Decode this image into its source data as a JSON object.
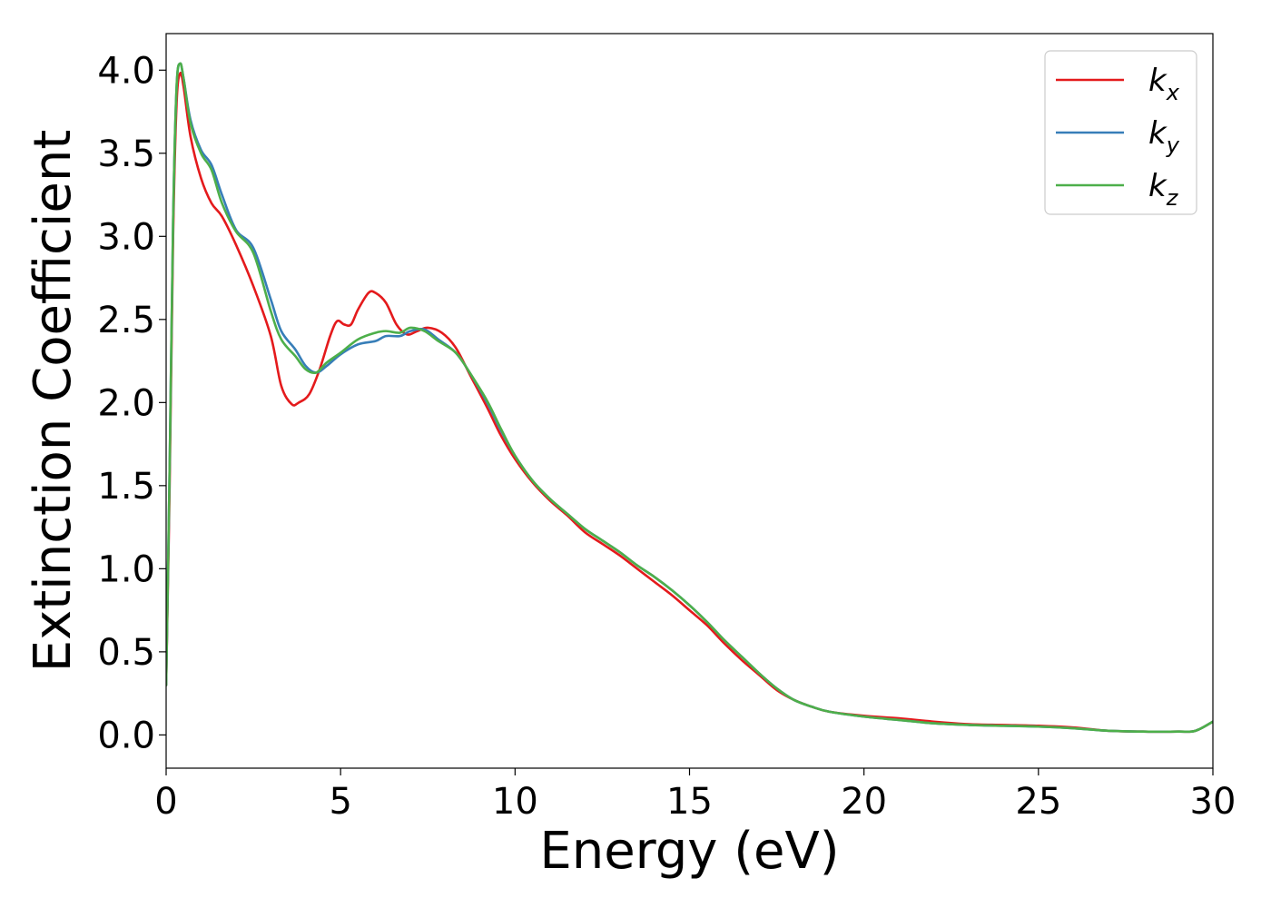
{
  "chart_data": {
    "type": "line",
    "title": "",
    "xlabel": "Energy (eV)",
    "ylabel": "Extinction Coefficient",
    "xlim": [
      0,
      30
    ],
    "ylim": [
      -0.2,
      4.22
    ],
    "xticks": [
      0,
      5,
      10,
      15,
      20,
      25,
      30
    ],
    "xtick_labels": [
      "0",
      "5",
      "10",
      "15",
      "20",
      "25",
      "30"
    ],
    "yticks": [
      0.0,
      0.5,
      1.0,
      1.5,
      2.0,
      2.5,
      3.0,
      3.5,
      4.0
    ],
    "ytick_labels": [
      "0.0",
      "0.5",
      "1.0",
      "1.5",
      "2.0",
      "2.5",
      "3.0",
      "3.5",
      "4.0"
    ],
    "grid": false,
    "legend_position": "top-right",
    "series": [
      {
        "name": "k",
        "subscript": "x",
        "color": "#e41a1c",
        "points": [
          [
            0,
            0.3
          ],
          [
            0.1,
            1.5
          ],
          [
            0.2,
            3.0
          ],
          [
            0.3,
            3.8
          ],
          [
            0.4,
            3.98
          ],
          [
            0.5,
            3.9
          ],
          [
            0.7,
            3.6
          ],
          [
            1.0,
            3.35
          ],
          [
            1.3,
            3.2
          ],
          [
            1.6,
            3.12
          ],
          [
            2.0,
            2.95
          ],
          [
            2.5,
            2.7
          ],
          [
            3.0,
            2.4
          ],
          [
            3.3,
            2.1
          ],
          [
            3.6,
            1.99
          ],
          [
            3.8,
            2.0
          ],
          [
            4.1,
            2.05
          ],
          [
            4.4,
            2.2
          ],
          [
            4.7,
            2.4
          ],
          [
            4.9,
            2.49
          ],
          [
            5.1,
            2.47
          ],
          [
            5.3,
            2.47
          ],
          [
            5.5,
            2.56
          ],
          [
            5.8,
            2.66
          ],
          [
            6.0,
            2.66
          ],
          [
            6.3,
            2.6
          ],
          [
            6.6,
            2.47
          ],
          [
            6.9,
            2.41
          ],
          [
            7.2,
            2.43
          ],
          [
            7.5,
            2.45
          ],
          [
            7.9,
            2.42
          ],
          [
            8.3,
            2.33
          ],
          [
            8.7,
            2.17
          ],
          [
            9.2,
            1.97
          ],
          [
            9.6,
            1.8
          ],
          [
            10.0,
            1.66
          ],
          [
            10.5,
            1.52
          ],
          [
            11.0,
            1.41
          ],
          [
            11.5,
            1.32
          ],
          [
            12.0,
            1.22
          ],
          [
            12.5,
            1.15
          ],
          [
            13.0,
            1.08
          ],
          [
            13.5,
            1.0
          ],
          [
            14.0,
            0.92
          ],
          [
            14.5,
            0.84
          ],
          [
            15.0,
            0.75
          ],
          [
            15.5,
            0.66
          ],
          [
            16.0,
            0.55
          ],
          [
            16.5,
            0.45
          ],
          [
            17.0,
            0.36
          ],
          [
            17.5,
            0.27
          ],
          [
            18.0,
            0.21
          ],
          [
            18.5,
            0.17
          ],
          [
            19.0,
            0.14
          ],
          [
            20.0,
            0.115
          ],
          [
            21.0,
            0.1
          ],
          [
            22.0,
            0.08
          ],
          [
            23.0,
            0.065
          ],
          [
            24.0,
            0.06
          ],
          [
            25.0,
            0.055
          ],
          [
            26.0,
            0.045
          ],
          [
            27.0,
            0.025
          ],
          [
            28.0,
            0.02
          ],
          [
            29.0,
            0.02
          ],
          [
            29.5,
            0.025
          ],
          [
            30.0,
            0.08
          ]
        ]
      },
      {
        "name": "k",
        "subscript": "y",
        "color": "#377eb8",
        "points": [
          [
            0,
            0.3
          ],
          [
            0.1,
            1.6
          ],
          [
            0.2,
            3.1
          ],
          [
            0.3,
            3.9
          ],
          [
            0.4,
            4.04
          ],
          [
            0.5,
            3.95
          ],
          [
            0.7,
            3.7
          ],
          [
            1.0,
            3.52
          ],
          [
            1.3,
            3.43
          ],
          [
            1.6,
            3.25
          ],
          [
            2.0,
            3.04
          ],
          [
            2.5,
            2.93
          ],
          [
            3.0,
            2.62
          ],
          [
            3.3,
            2.43
          ],
          [
            3.7,
            2.32
          ],
          [
            4.0,
            2.22
          ],
          [
            4.3,
            2.18
          ],
          [
            4.6,
            2.22
          ],
          [
            5.0,
            2.29
          ],
          [
            5.5,
            2.35
          ],
          [
            6.0,
            2.37
          ],
          [
            6.3,
            2.4
          ],
          [
            6.7,
            2.4
          ],
          [
            7.0,
            2.43
          ],
          [
            7.4,
            2.44
          ],
          [
            7.8,
            2.38
          ],
          [
            8.3,
            2.3
          ],
          [
            8.7,
            2.18
          ],
          [
            9.2,
            2.0
          ],
          [
            9.6,
            1.83
          ],
          [
            10.0,
            1.68
          ],
          [
            10.5,
            1.53
          ],
          [
            11.0,
            1.42
          ],
          [
            11.5,
            1.33
          ],
          [
            12.0,
            1.24
          ],
          [
            12.5,
            1.17
          ],
          [
            13.0,
            1.1
          ],
          [
            13.5,
            1.02
          ],
          [
            14.0,
            0.95
          ],
          [
            14.5,
            0.87
          ],
          [
            15.0,
            0.78
          ],
          [
            15.5,
            0.68
          ],
          [
            16.0,
            0.57
          ],
          [
            16.5,
            0.47
          ],
          [
            17.0,
            0.37
          ],
          [
            17.5,
            0.28
          ],
          [
            18.0,
            0.21
          ],
          [
            18.5,
            0.17
          ],
          [
            19.0,
            0.14
          ],
          [
            20.0,
            0.11
          ],
          [
            21.0,
            0.09
          ],
          [
            22.0,
            0.07
          ],
          [
            23.0,
            0.06
          ],
          [
            24.0,
            0.055
          ],
          [
            25.0,
            0.05
          ],
          [
            26.0,
            0.04
          ],
          [
            27.0,
            0.025
          ],
          [
            28.0,
            0.02
          ],
          [
            29.0,
            0.02
          ],
          [
            29.5,
            0.025
          ],
          [
            30.0,
            0.08
          ]
        ]
      },
      {
        "name": "k",
        "subscript": "z",
        "color": "#4daf4a",
        "points": [
          [
            0,
            0.3
          ],
          [
            0.1,
            1.6
          ],
          [
            0.2,
            3.1
          ],
          [
            0.3,
            3.9
          ],
          [
            0.4,
            4.04
          ],
          [
            0.5,
            3.95
          ],
          [
            0.7,
            3.68
          ],
          [
            1.0,
            3.5
          ],
          [
            1.3,
            3.4
          ],
          [
            1.6,
            3.2
          ],
          [
            2.0,
            3.03
          ],
          [
            2.5,
            2.9
          ],
          [
            3.0,
            2.55
          ],
          [
            3.3,
            2.38
          ],
          [
            3.7,
            2.28
          ],
          [
            4.0,
            2.2
          ],
          [
            4.3,
            2.18
          ],
          [
            4.6,
            2.24
          ],
          [
            5.0,
            2.3
          ],
          [
            5.5,
            2.38
          ],
          [
            6.0,
            2.42
          ],
          [
            6.3,
            2.43
          ],
          [
            6.7,
            2.42
          ],
          [
            7.0,
            2.45
          ],
          [
            7.4,
            2.43
          ],
          [
            7.8,
            2.37
          ],
          [
            8.3,
            2.3
          ],
          [
            8.7,
            2.18
          ],
          [
            9.2,
            2.01
          ],
          [
            9.6,
            1.84
          ],
          [
            10.0,
            1.68
          ],
          [
            10.5,
            1.53
          ],
          [
            11.0,
            1.42
          ],
          [
            11.5,
            1.33
          ],
          [
            12.0,
            1.24
          ],
          [
            12.5,
            1.17
          ],
          [
            13.0,
            1.1
          ],
          [
            13.5,
            1.02
          ],
          [
            14.0,
            0.95
          ],
          [
            14.5,
            0.87
          ],
          [
            15.0,
            0.78
          ],
          [
            15.5,
            0.68
          ],
          [
            16.0,
            0.57
          ],
          [
            16.5,
            0.47
          ],
          [
            17.0,
            0.37
          ],
          [
            17.5,
            0.28
          ],
          [
            18.0,
            0.21
          ],
          [
            18.5,
            0.17
          ],
          [
            19.0,
            0.14
          ],
          [
            20.0,
            0.11
          ],
          [
            21.0,
            0.09
          ],
          [
            22.0,
            0.07
          ],
          [
            23.0,
            0.06
          ],
          [
            24.0,
            0.055
          ],
          [
            25.0,
            0.05
          ],
          [
            26.0,
            0.04
          ],
          [
            27.0,
            0.025
          ],
          [
            28.0,
            0.02
          ],
          [
            29.0,
            0.02
          ],
          [
            29.5,
            0.025
          ],
          [
            30.0,
            0.08
          ]
        ]
      }
    ]
  }
}
